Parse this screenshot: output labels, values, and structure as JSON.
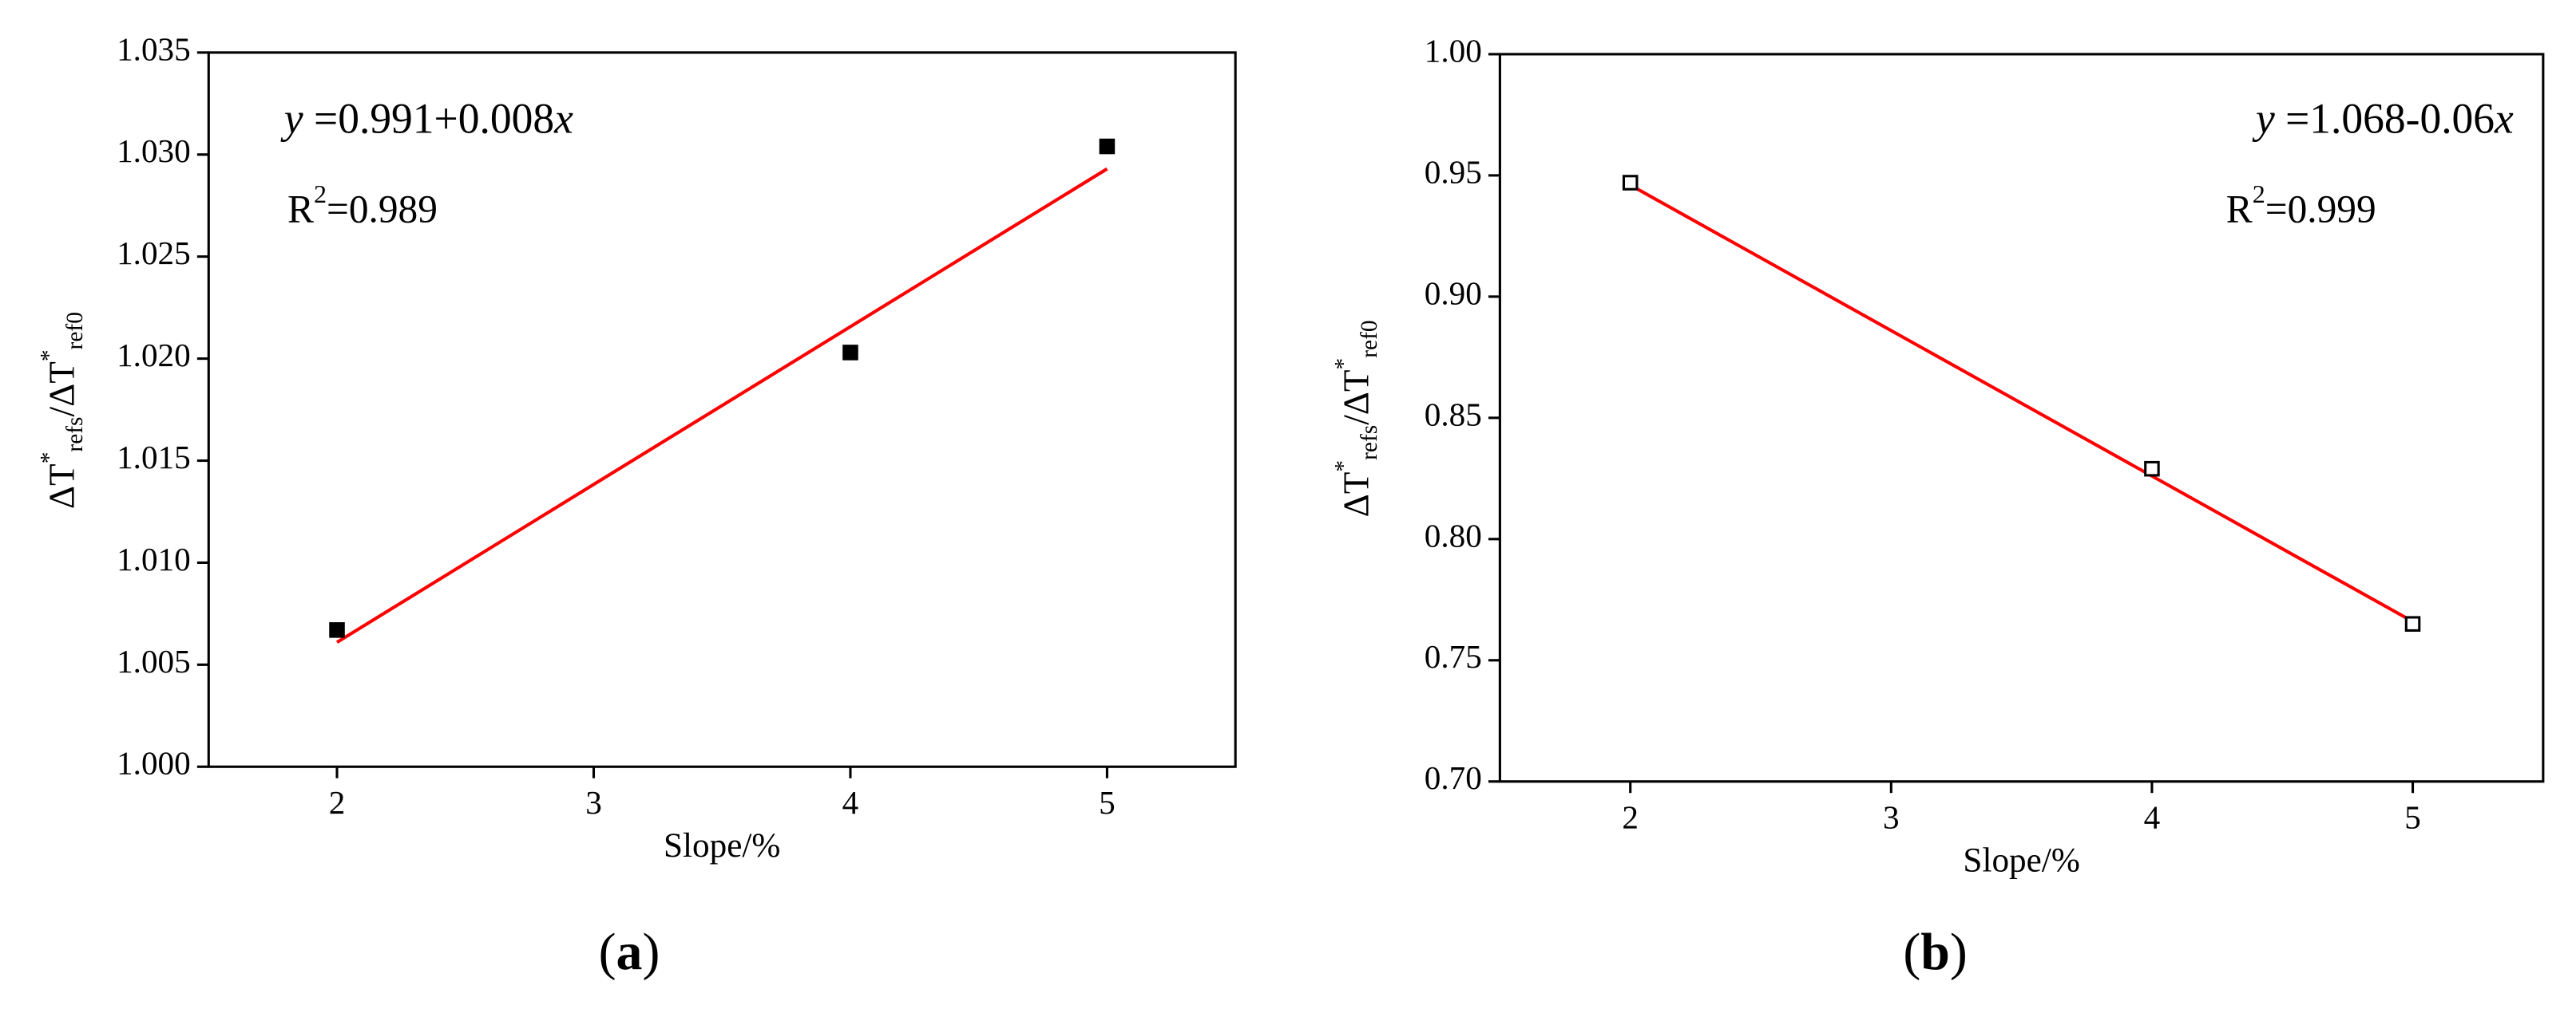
{
  "chart_data": [
    {
      "type": "scatter",
      "xlabel": "Slope/%",
      "ylabel": [
        {
          "text": "ΔT"
        },
        {
          "text": "*",
          "shift": "super"
        },
        {
          "text": "refs",
          "shift": "sub"
        },
        {
          "text": "/ΔT"
        },
        {
          "text": "*",
          "shift": "super"
        },
        {
          "text": "ref0",
          "shift": "sub"
        }
      ],
      "x": [
        2,
        4,
        5
      ],
      "values": [
        1.0067,
        1.0203,
        1.0304
      ],
      "markers": {
        "shape": "square",
        "filled": true,
        "color": "#000000"
      },
      "fit": {
        "x": [
          2,
          5
        ],
        "values": [
          1.0061,
          1.0293
        ],
        "color": "#ff0000"
      },
      "equation": [
        {
          "text": "y",
          "style": "italic"
        },
        {
          "text": " =0.991+0.008"
        },
        {
          "text": "x",
          "style": "italic"
        }
      ],
      "r_squared": [
        {
          "text": "R"
        },
        {
          "text": "2",
          "shift": "super"
        },
        {
          "text": "=0.989"
        }
      ],
      "caption": [
        {
          "text": "("
        },
        {
          "text": "a",
          "weight": "bold"
        },
        {
          "text": ")"
        }
      ],
      "xlim": [
        1.5,
        5.5
      ],
      "xticks": [
        2,
        3,
        4,
        5
      ],
      "ylim": [
        1.0,
        1.035
      ],
      "yticks": [
        {
          "value": 1.0,
          "label": "1.000"
        },
        1.005,
        {
          "value": 1.01,
          "label": "1.010"
        },
        1.015,
        {
          "value": 1.02,
          "label": "1.020"
        },
        1.025,
        {
          "value": 1.03,
          "label": "1.030"
        },
        1.035
      ]
    },
    {
      "type": "scatter",
      "xlabel": "Slope/%",
      "ylabel": [
        {
          "text": "ΔT"
        },
        {
          "text": "*",
          "shift": "super"
        },
        {
          "text": "refs",
          "shift": "sub"
        },
        {
          "text": "/ΔT"
        },
        {
          "text": "*",
          "shift": "super"
        },
        {
          "text": "ref0",
          "shift": "sub"
        }
      ],
      "x": [
        2,
        4,
        5
      ],
      "values": [
        0.947,
        0.829,
        0.765
      ],
      "markers": {
        "shape": "square",
        "filled": false,
        "color": "#000000"
      },
      "fit": {
        "x": [
          2,
          5
        ],
        "values": [
          0.946,
          0.766
        ],
        "color": "#ff0000"
      },
      "equation": [
        {
          "text": "y",
          "style": "italic"
        },
        {
          "text": " =1.068-0.06"
        },
        {
          "text": "x",
          "style": "italic"
        }
      ],
      "r_squared": [
        {
          "text": "R"
        },
        {
          "text": "2",
          "shift": "super"
        },
        {
          "text": "=0.999"
        }
      ],
      "caption": [
        {
          "text": "("
        },
        {
          "text": "b",
          "weight": "bold"
        },
        {
          "text": ")"
        }
      ],
      "xlim": [
        1.5,
        5.5
      ],
      "xticks": [
        2,
        3,
        4,
        5
      ],
      "ylim": [
        0.7,
        1.0
      ],
      "yticks": [
        {
          "value": 0.7,
          "label": "0.70"
        },
        0.75,
        {
          "value": 0.8,
          "label": "0.80"
        },
        0.85,
        {
          "value": 0.9,
          "label": "0.90"
        },
        0.95,
        {
          "value": 1.0,
          "label": "1.00"
        }
      ]
    }
  ]
}
